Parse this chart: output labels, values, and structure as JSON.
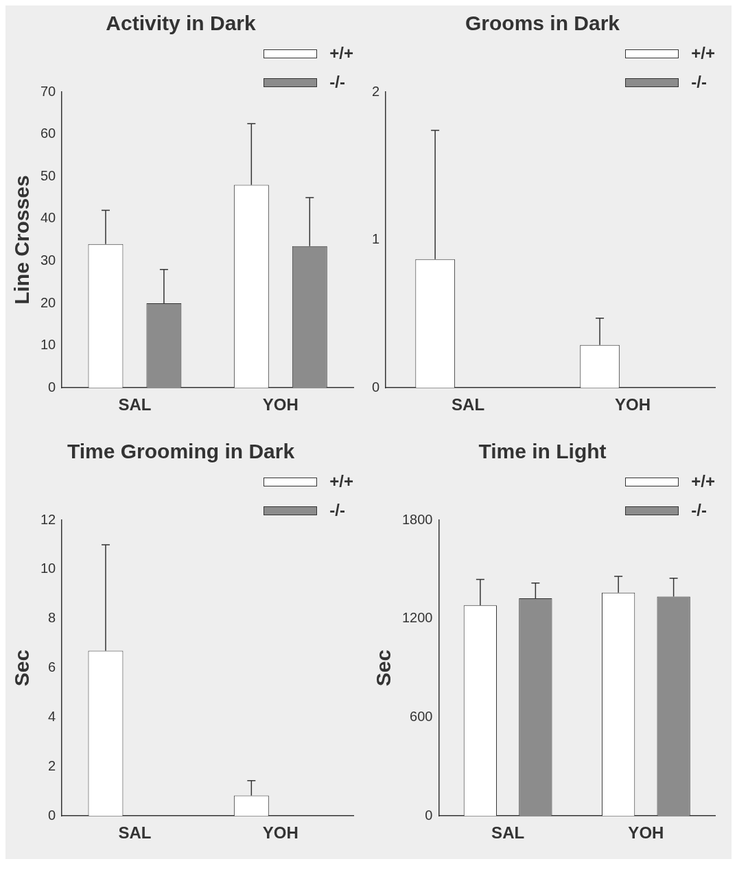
{
  "chart_data": [
    {
      "type": "bar",
      "title": "Activity in Dark",
      "ylabel": "Line Crosses",
      "categories": [
        "SAL",
        "YOH"
      ],
      "series": [
        {
          "name": "+/+",
          "color": "#ffffff",
          "values": [
            34,
            48
          ],
          "errors": [
            8,
            14.5
          ]
        },
        {
          "name": "-/-",
          "color": "#8c8c8c",
          "values": [
            20,
            33.5
          ],
          "errors": [
            8,
            11.5
          ]
        }
      ],
      "ylim": [
        0,
        70
      ],
      "yticks": [
        0,
        10,
        20,
        30,
        40,
        50,
        60,
        70
      ],
      "grid": false,
      "legend": "top right"
    },
    {
      "type": "bar",
      "title": "Grooms in Dark",
      "categories": [
        "SAL",
        "YOH"
      ],
      "series": [
        {
          "name": "+/+",
          "color": "#ffffff",
          "values": [
            0.87,
            0.29
          ],
          "errors": [
            0.87,
            0.18
          ]
        },
        {
          "name": "-/-",
          "color": "#8c8c8c",
          "values": [
            0,
            0
          ],
          "errors": [
            null,
            null
          ]
        }
      ],
      "ylim": [
        0,
        2
      ],
      "yticks": [
        0,
        1,
        2
      ],
      "grid": false,
      "legend": "top right"
    },
    {
      "type": "bar",
      "title": "Time Grooming in Dark",
      "ylabel": "Sec",
      "categories": [
        "SAL",
        "YOH"
      ],
      "series": [
        {
          "name": "+/+",
          "color": "#ffffff",
          "values": [
            6.7,
            0.83
          ],
          "errors": [
            4.3,
            0.6
          ]
        },
        {
          "name": "-/-",
          "color": "#8c8c8c",
          "values": [
            0,
            0
          ],
          "errors": [
            null,
            null
          ]
        }
      ],
      "ylim": [
        0,
        12
      ],
      "yticks": [
        0,
        2,
        4,
        6,
        8,
        10,
        12
      ],
      "grid": false,
      "legend": "top right"
    },
    {
      "type": "bar",
      "title": "Time in Light",
      "ylabel": "Sec",
      "categories": [
        "SAL",
        "YOH"
      ],
      "series": [
        {
          "name": "+/+",
          "color": "#ffffff",
          "values": [
            1281,
            1359
          ],
          "errors": [
            158,
            99
          ]
        },
        {
          "name": "-/-",
          "color": "#8c8c8c",
          "values": [
            1324,
            1335
          ],
          "errors": [
            93,
            111
          ]
        }
      ],
      "ylim": [
        0,
        1800
      ],
      "yticks": [
        0,
        600,
        1200,
        1800
      ],
      "grid": false,
      "legend": "top right"
    }
  ]
}
